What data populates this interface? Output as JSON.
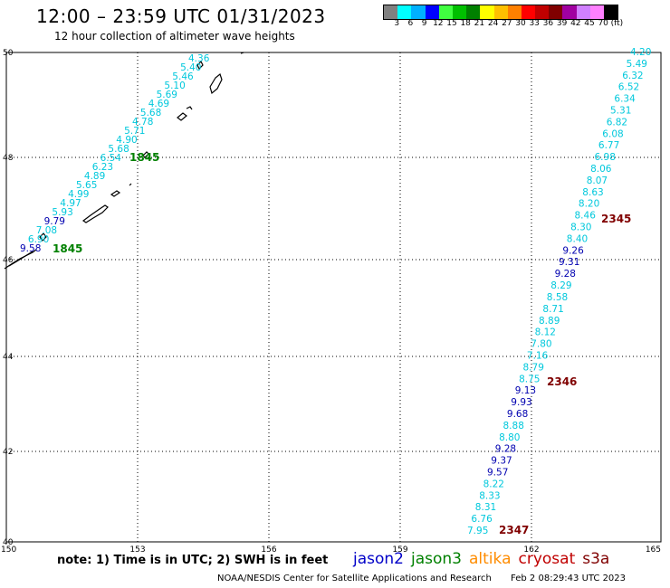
{
  "header": {
    "title": "12:00 – 23:59 UTC 01/31/2023",
    "subtitle": "12 hour collection of altimeter wave heights"
  },
  "colorbar": {
    "colors": [
      "#808080",
      "#00ffff",
      "#00b0ff",
      "#0000ff",
      "#40ff40",
      "#00c000",
      "#008000",
      "#ffff00",
      "#ffc000",
      "#ff8000",
      "#ff0000",
      "#c00000",
      "#800000",
      "#a000a0",
      "#d080ff",
      "#ff80ff",
      "#000000"
    ],
    "ticks": [
      "3",
      "6",
      "9",
      "12",
      "15",
      "18",
      "21",
      "24",
      "27",
      "30",
      "33",
      "36",
      "39",
      "42",
      "45",
      "70",
      "(ft)"
    ]
  },
  "map": {
    "lon_ticks": [
      "150",
      "153",
      "156",
      "159",
      "162",
      "165"
    ],
    "lat_ticks": [
      "50",
      "48",
      "46",
      "44",
      "42",
      "40"
    ],
    "time_labels": [
      {
        "text": "1845",
        "color": "#008000"
      },
      {
        "text": "1845",
        "color": "#008000"
      },
      {
        "text": "2345",
        "color": "#800000"
      },
      {
        "text": "2346",
        "color": "#800000"
      },
      {
        "text": "2347",
        "color": "#800000"
      }
    ],
    "track_west": [
      {
        "v": "4.36",
        "c": "#00c8dc"
      },
      {
        "v": "5.40",
        "c": "#00c8dc"
      },
      {
        "v": "5.46",
        "c": "#00c8dc"
      },
      {
        "v": "5.10",
        "c": "#00c8dc"
      },
      {
        "v": "5.69",
        "c": "#00c8dc"
      },
      {
        "v": "4.69",
        "c": "#00c8dc"
      },
      {
        "v": "5.68",
        "c": "#00c8dc"
      },
      {
        "v": "4.78",
        "c": "#00c8dc"
      },
      {
        "v": "5.71",
        "c": "#00c8dc"
      },
      {
        "v": "4.90",
        "c": "#00c8dc"
      },
      {
        "v": "5.68",
        "c": "#00c8dc"
      },
      {
        "v": "6.54",
        "c": "#00c8dc"
      },
      {
        "v": "6.23",
        "c": "#00c8dc"
      },
      {
        "v": "4.89",
        "c": "#00c8dc"
      },
      {
        "v": "5.65",
        "c": "#00c8dc"
      },
      {
        "v": "4.99",
        "c": "#00c8dc"
      },
      {
        "v": "4.97",
        "c": "#00c8dc"
      },
      {
        "v": "5.93",
        "c": "#00c8dc"
      },
      {
        "v": "9.79",
        "c": "#0000b0"
      },
      {
        "v": "7.08",
        "c": "#00c8dc"
      },
      {
        "v": "6.90",
        "c": "#00c8dc"
      },
      {
        "v": "9.58",
        "c": "#0000b0"
      }
    ],
    "track_east": [
      {
        "v": "4.20",
        "c": "#00c8dc"
      },
      {
        "v": "5.49",
        "c": "#00c8dc"
      },
      {
        "v": "6.32",
        "c": "#00c8dc"
      },
      {
        "v": "6.52",
        "c": "#00c8dc"
      },
      {
        "v": "6.34",
        "c": "#00c8dc"
      },
      {
        "v": "5.31",
        "c": "#00c8dc"
      },
      {
        "v": "6.82",
        "c": "#00c8dc"
      },
      {
        "v": "6.08",
        "c": "#00c8dc"
      },
      {
        "v": "6.77",
        "c": "#00c8dc"
      },
      {
        "v": "6.98",
        "c": "#00c8dc"
      },
      {
        "v": "8.06",
        "c": "#00c8dc"
      },
      {
        "v": "8.07",
        "c": "#00c8dc"
      },
      {
        "v": "8.63",
        "c": "#00c8dc"
      },
      {
        "v": "8.20",
        "c": "#00c8dc"
      },
      {
        "v": "8.46",
        "c": "#00c8dc"
      },
      {
        "v": "8.30",
        "c": "#00c8dc"
      },
      {
        "v": "8.40",
        "c": "#00c8dc"
      },
      {
        "v": "9.26",
        "c": "#0000b0"
      },
      {
        "v": "9.31",
        "c": "#0000b0"
      },
      {
        "v": "9.28",
        "c": "#0000b0"
      },
      {
        "v": "8.29",
        "c": "#00c8dc"
      },
      {
        "v": "8.58",
        "c": "#00c8dc"
      },
      {
        "v": "8.71",
        "c": "#00c8dc"
      },
      {
        "v": "8.89",
        "c": "#00c8dc"
      },
      {
        "v": "8.12",
        "c": "#00c8dc"
      },
      {
        "v": "7.80",
        "c": "#00c8dc"
      },
      {
        "v": "7.16",
        "c": "#00c8dc"
      },
      {
        "v": "8.79",
        "c": "#00c8dc"
      },
      {
        "v": "8.75",
        "c": "#00c8dc"
      },
      {
        "v": "9.13",
        "c": "#0000b0"
      },
      {
        "v": "9.93",
        "c": "#0000b0"
      },
      {
        "v": "9.68",
        "c": "#0000b0"
      },
      {
        "v": "8.88",
        "c": "#00c8dc"
      },
      {
        "v": "8.80",
        "c": "#00c8dc"
      },
      {
        "v": "9.28",
        "c": "#0000b0"
      },
      {
        "v": "9.37",
        "c": "#0000b0"
      },
      {
        "v": "9.57",
        "c": "#0000b0"
      },
      {
        "v": "8.22",
        "c": "#00c8dc"
      },
      {
        "v": "8.33",
        "c": "#00c8dc"
      },
      {
        "v": "8.31",
        "c": "#00c8dc"
      },
      {
        "v": "6.76",
        "c": "#00c8dc"
      },
      {
        "v": "7.95",
        "c": "#00c8dc"
      }
    ]
  },
  "footer": {
    "note": "note: 1) Time is in UTC; 2) SWH is in feet",
    "legend": [
      {
        "label": "jason2",
        "color": "#0000c8"
      },
      {
        "label": "jason3",
        "color": "#008000"
      },
      {
        "label": "altika",
        "color": "#ff8c00"
      },
      {
        "label": "cryosat",
        "color": "#c00000"
      },
      {
        "label": "s3a",
        "color": "#800000"
      }
    ],
    "credit": "NOAA/NESDIS Center for Satellite Applications and Research",
    "timestamp": "Feb  2 08:29:43 UTC 2023"
  }
}
